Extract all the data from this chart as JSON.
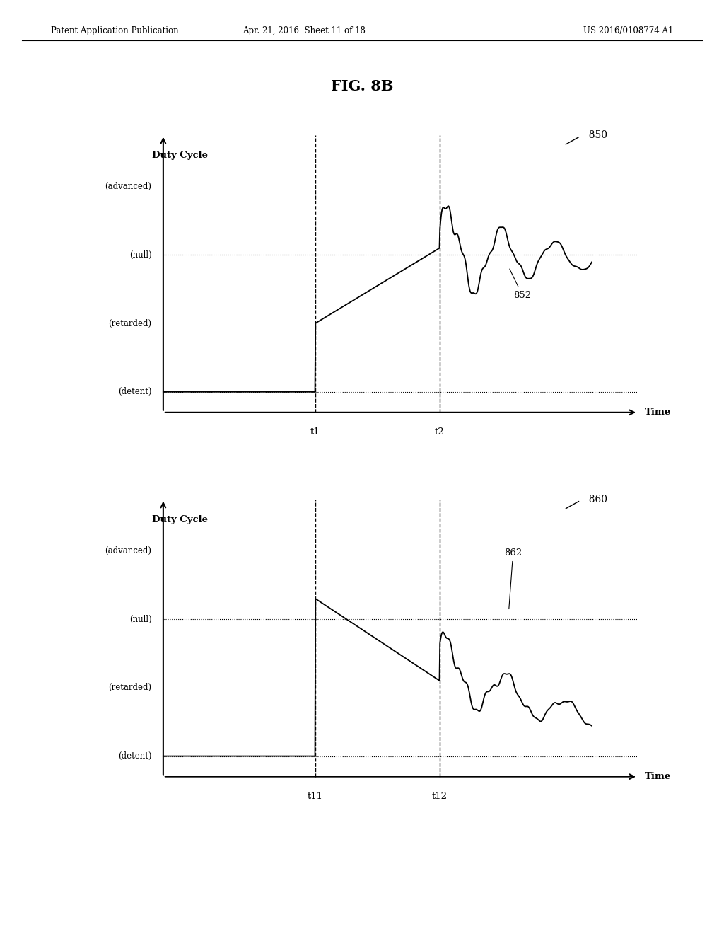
{
  "fig_title": "FIG. 8B",
  "patent_header_left": "Patent Application Publication",
  "patent_header_mid": "Apr. 21, 2016  Sheet 11 of 18",
  "patent_header_right": "US 2016/0108774 A1",
  "background_color": "#ffffff",
  "text_color": "#000000",
  "chart1": {
    "label": "850",
    "ylabel": "Duty Cycle",
    "xlabel": "Time",
    "ytick_labels": [
      "(advanced)",
      "(null)",
      "(retarded)",
      "(detent)"
    ],
    "t1_label": "t1",
    "t2_label": "t2",
    "t1": 0.33,
    "t2": 0.6,
    "curve_label": "852"
  },
  "chart2": {
    "label": "860",
    "ylabel": "Duty Cycle",
    "xlabel": "Time",
    "ytick_labels": [
      "(advanced)",
      "(null)",
      "(retarded)",
      "(detent)"
    ],
    "t1_label": "t11",
    "t2_label": "t12",
    "t1": 0.33,
    "t2": 0.6,
    "curve_label": "862"
  }
}
